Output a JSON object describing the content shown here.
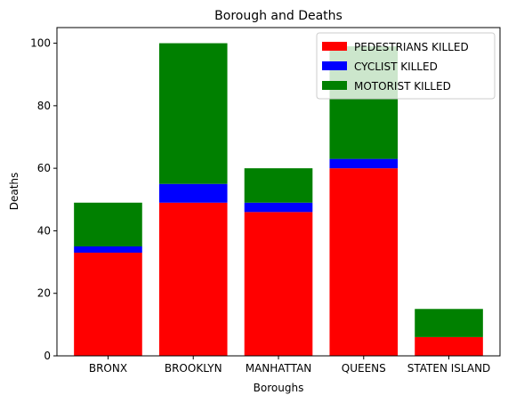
{
  "chart_data": {
    "type": "bar",
    "stacked": true,
    "title": "Borough and Deaths",
    "xlabel": "Boroughs",
    "ylabel": "Deaths",
    "categories": [
      "BRONX",
      "BROOKLYN",
      "MANHATTAN",
      "QUEENS",
      "STATEN ISLAND"
    ],
    "series": [
      {
        "name": "PEDESTRIANS KILLED",
        "color": "#ff0000",
        "values": [
          33,
          49,
          46,
          60,
          6
        ]
      },
      {
        "name": "CYCLIST KILLED",
        "color": "#0000ff",
        "values": [
          2,
          6,
          3,
          3,
          0
        ]
      },
      {
        "name": "MOTORIST KILLED",
        "color": "#008000",
        "values": [
          14,
          45,
          11,
          36,
          9
        ]
      }
    ],
    "ylim": [
      0,
      105
    ],
    "yticks": [
      0,
      20,
      40,
      60,
      80,
      100
    ],
    "legend_position": "top-right",
    "grid": false
  }
}
